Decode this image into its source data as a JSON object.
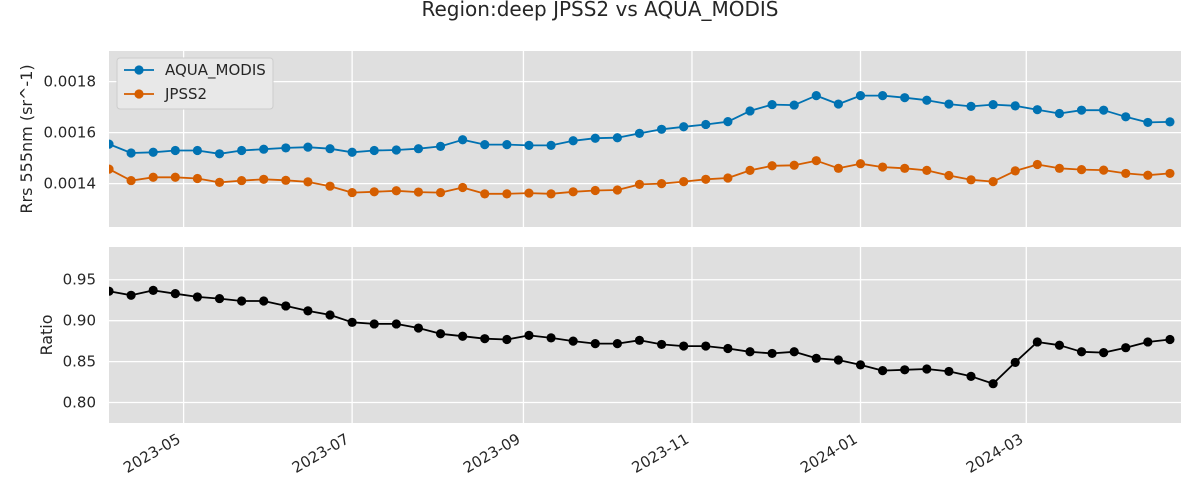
{
  "chart_data": {
    "title": "Region:deep JPSS2 vs AQUA_MODIS",
    "xlim": [
      "2023-04-04",
      "2024-04-26"
    ],
    "x_ticks": [
      "2023-05-01",
      "2023-07-01",
      "2023-09-01",
      "2023-11-01",
      "2024-01-01",
      "2024-03-01"
    ],
    "x_tick_labels": [
      "2023-05",
      "2023-07",
      "2023-09",
      "2023-11",
      "2024-01",
      "2024-03"
    ],
    "dates": [
      "2023-04-04",
      "2023-04-12",
      "2023-04-20",
      "2023-04-28",
      "2023-05-06",
      "2023-05-14",
      "2023-05-22",
      "2023-05-30",
      "2023-06-07",
      "2023-06-15",
      "2023-06-23",
      "2023-07-01",
      "2023-07-09",
      "2023-07-17",
      "2023-07-25",
      "2023-08-02",
      "2023-08-10",
      "2023-08-18",
      "2023-08-26",
      "2023-09-03",
      "2023-09-11",
      "2023-09-19",
      "2023-09-27",
      "2023-10-05",
      "2023-10-13",
      "2023-10-21",
      "2023-10-29",
      "2023-11-06",
      "2023-11-14",
      "2023-11-22",
      "2023-11-30",
      "2023-12-08",
      "2023-12-16",
      "2023-12-24",
      "2024-01-01",
      "2024-01-09",
      "2024-01-17",
      "2024-01-25",
      "2024-02-02",
      "2024-02-10",
      "2024-02-18",
      "2024-02-26",
      "2024-03-05",
      "2024-03-13",
      "2024-03-21",
      "2024-03-29",
      "2024-04-06",
      "2024-04-14",
      "2024-04-22"
    ],
    "panels": [
      {
        "type": "line",
        "ylabel": "Rrs 555nm (sr^-1)",
        "ylim": [
          0.00123,
          0.00192
        ],
        "yticks": [
          0.0014,
          0.0016,
          0.0018
        ],
        "ytick_labels": [
          "0.0014",
          "0.0016",
          "0.0018"
        ],
        "grid": true,
        "legend_position": "upper-left",
        "series": [
          {
            "name": "AQUA_MODIS",
            "color": "#0072b2",
            "values": [
              0.001555,
              0.00152,
              0.001523,
              0.00153,
              0.00153,
              0.001517,
              0.00153,
              0.001535,
              0.00154,
              0.001543,
              0.001537,
              0.001523,
              0.00153,
              0.001532,
              0.001537,
              0.001546,
              0.001572,
              0.001553,
              0.001553,
              0.00155,
              0.00155,
              0.001568,
              0.001578,
              0.00158,
              0.001597,
              0.001613,
              0.001623,
              0.001632,
              0.001643,
              0.001685,
              0.00171,
              0.001708,
              0.001745,
              0.001712,
              0.001745,
              0.001745,
              0.001737,
              0.001727,
              0.001712,
              0.001703,
              0.00171,
              0.001705,
              0.00169,
              0.001675,
              0.001688,
              0.001688,
              0.001662,
              0.00164,
              0.001642
            ]
          },
          {
            "name": "JPSS2",
            "color": "#d55e00",
            "values": [
              0.001457,
              0.001412,
              0.001425,
              0.001425,
              0.00142,
              0.001405,
              0.001412,
              0.001417,
              0.001413,
              0.001407,
              0.00139,
              0.001365,
              0.001368,
              0.001372,
              0.001367,
              0.001365,
              0.001385,
              0.00136,
              0.00136,
              0.001363,
              0.00136,
              0.001368,
              0.001373,
              0.001375,
              0.001397,
              0.0014,
              0.001408,
              0.001417,
              0.001422,
              0.001452,
              0.00147,
              0.001472,
              0.00149,
              0.00146,
              0.001478,
              0.001465,
              0.00146,
              0.001452,
              0.001432,
              0.001415,
              0.001408,
              0.00145,
              0.001475,
              0.00146,
              0.001455,
              0.001453,
              0.00144,
              0.001433,
              0.00144
            ]
          }
        ]
      },
      {
        "type": "line",
        "ylabel": "Ratio",
        "ylim": [
          0.775,
          0.99
        ],
        "yticks": [
          0.8,
          0.85,
          0.9,
          0.95
        ],
        "ytick_labels": [
          "0.80",
          "0.85",
          "0.90",
          "0.95"
        ],
        "grid": true,
        "series": [
          {
            "color": "#000000",
            "values": [
              0.936,
              0.931,
              0.937,
              0.933,
              0.929,
              0.927,
              0.924,
              0.924,
              0.918,
              0.912,
              0.907,
              0.898,
              0.896,
              0.896,
              0.891,
              0.884,
              0.881,
              0.878,
              0.877,
              0.882,
              0.879,
              0.875,
              0.872,
              0.872,
              0.876,
              0.871,
              0.869,
              0.869,
              0.866,
              0.862,
              0.86,
              0.862,
              0.854,
              0.852,
              0.846,
              0.839,
              0.84,
              0.841,
              0.838,
              0.832,
              0.823,
              0.849,
              0.874,
              0.87,
              0.862,
              0.861,
              0.867,
              0.874,
              0.877
            ]
          }
        ]
      }
    ]
  }
}
